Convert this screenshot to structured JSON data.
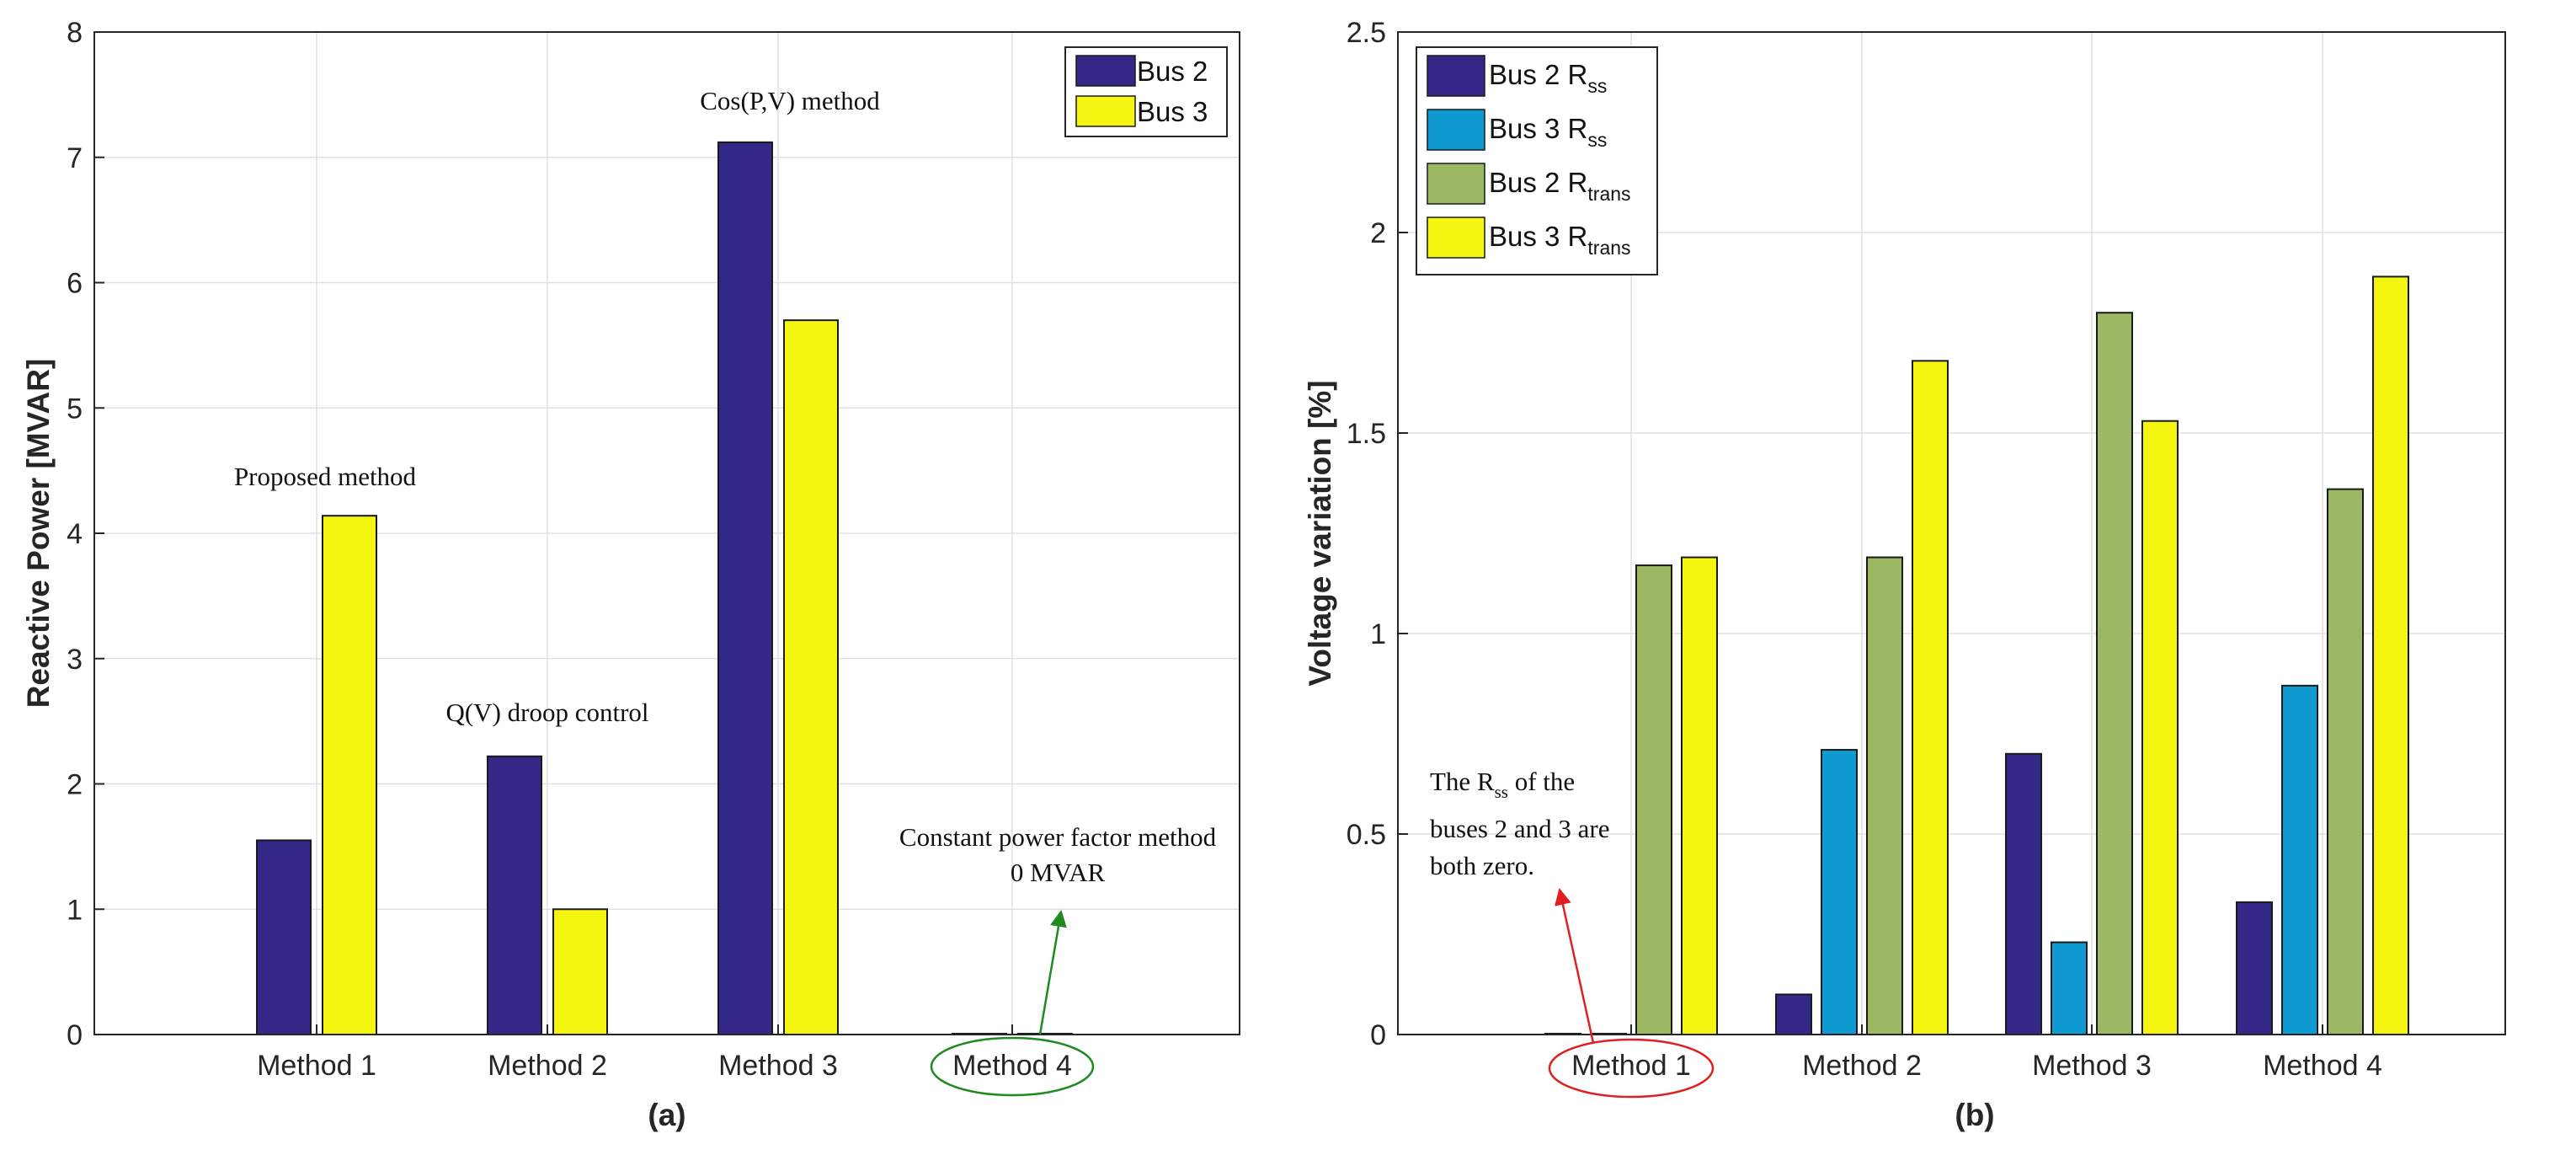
{
  "chart_data": [
    {
      "type": "bar",
      "title": "",
      "subtitle": "(a)",
      "xlabel": "",
      "ylabel": "Reactive Power [MVAR]",
      "ylim": [
        0,
        8
      ],
      "yticks": [
        "0",
        "1",
        "2",
        "3",
        "4",
        "5",
        "6",
        "7",
        "8"
      ],
      "categories": [
        "Method 1",
        "Method 2",
        "Method 3",
        "Method 4"
      ],
      "series": [
        {
          "name": "Bus 2",
          "color": "#332888",
          "values": [
            1.55,
            2.22,
            7.12,
            0
          ]
        },
        {
          "name": "Bus 3",
          "color": "#f5f512",
          "values": [
            4.14,
            1.0,
            5.7,
            0
          ]
        }
      ],
      "grid": true,
      "legend_position": "top-right",
      "annotations": {
        "method1": "Proposed method",
        "method2": "Q(V) droop control",
        "method3": "Cos(P,V) method",
        "method4_line1": "Constant power factor method",
        "method4_line2": "0 MVAR"
      },
      "highlight_color": "#1f8a1f"
    },
    {
      "type": "bar",
      "title": "",
      "subtitle": "(b)",
      "xlabel": "",
      "ylabel": "Voltage variation [%]",
      "ylim": [
        0,
        2.5
      ],
      "yticks": [
        "0",
        "0.5",
        "1",
        "1.5",
        "2",
        "2.5"
      ],
      "categories": [
        "Method 1",
        "Method 2",
        "Method 3",
        "Method 4"
      ],
      "series": [
        {
          "name": "Bus 2 R",
          "subscript": "ss",
          "color": "#332888",
          "values": [
            0,
            0.1,
            0.7,
            0.33
          ]
        },
        {
          "name": "Bus 3 R",
          "subscript": "ss",
          "color": "#0f9ad2",
          "values": [
            0,
            0.71,
            0.23,
            0.87
          ]
        },
        {
          "name": "Bus 2 R",
          "subscript": "trans",
          "color": "#9cb862",
          "values": [
            1.17,
            1.19,
            1.8,
            1.36
          ]
        },
        {
          "name": "Bus 3 R",
          "subscript": "trans",
          "color": "#f5f512",
          "values": [
            1.19,
            1.68,
            1.53,
            1.89
          ]
        }
      ],
      "grid": true,
      "legend_position": "top-left",
      "annotations": {
        "note_pre": "The R",
        "note_sub": "ss",
        "note_post": " of the",
        "note_line2": "buses 2 and 3 are",
        "note_line3": "both zero."
      },
      "highlight_color": "#e02020"
    }
  ]
}
